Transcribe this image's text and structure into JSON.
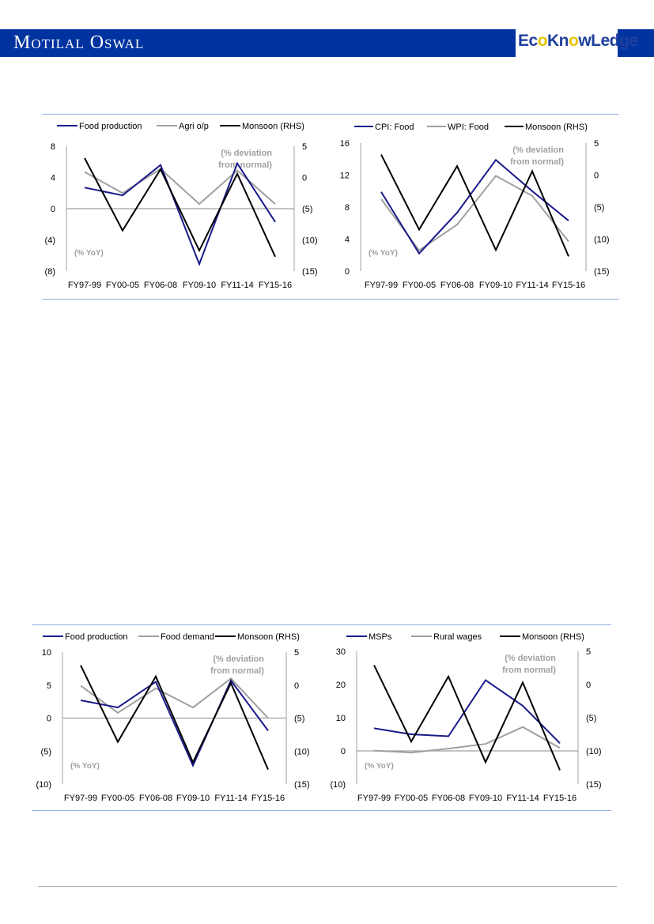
{
  "header": {
    "brand": "Motilal Oswal",
    "logo_text": "EcoKnowLedge",
    "color": "#0033a0"
  },
  "colors": {
    "navy": "#1a1a8c",
    "grey": "#a0a0a0",
    "black": "#000000",
    "annotation": "#a0a0a0",
    "frame": "#8eb0e6"
  },
  "chart_data": [
    {
      "type": "line",
      "categories": [
        "FY97-99",
        "FY00-05",
        "FY06-08",
        "FY09-10",
        "FY11-14",
        "FY15-16"
      ],
      "left_axis": {
        "range": [
          -8,
          8
        ],
        "ticks": [
          "8",
          "4",
          "0",
          "(4)",
          "(8)"
        ],
        "label": "(% YoY)"
      },
      "right_axis": {
        "range": [
          -15,
          5
        ],
        "ticks": [
          "5",
          "0",
          "(5)",
          "(10)",
          "(15)"
        ],
        "label": [
          "(% deviation",
          "from normal)"
        ]
      },
      "series": [
        {
          "name": "Food production",
          "axis": "left",
          "color": "#1a1a8c",
          "values": [
            2.7,
            1.7,
            5.6,
            -7.1,
            5.8,
            -1.7
          ]
        },
        {
          "name": "Agri o/p",
          "axis": "left",
          "color": "#a0a0a0",
          "values": [
            4.7,
            2.0,
            5.1,
            0.6,
            4.9,
            0.6
          ]
        },
        {
          "name": "Monsoon (RHS)",
          "axis": "right",
          "color": "#000000",
          "values": [
            3.1,
            -8.5,
            1.3,
            -11.7,
            0.6,
            -12.7
          ]
        }
      ]
    },
    {
      "type": "line",
      "categories": [
        "FY97-99",
        "FY00-05",
        "FY06-08",
        "FY09-10",
        "FY11-14",
        "FY15-16"
      ],
      "left_axis": {
        "range": [
          0,
          16
        ],
        "ticks": [
          "16",
          "12",
          "8",
          "4",
          "0"
        ],
        "label": "(% YoY)"
      },
      "right_axis": {
        "range": [
          -15,
          5
        ],
        "ticks": [
          "5",
          "0",
          "(5)",
          "(10)",
          "(15)"
        ],
        "label": [
          "(% deviation",
          "from normal)"
        ]
      },
      "series": [
        {
          "name": "CPI: Food",
          "axis": "left",
          "color": "#1a1a8c",
          "values": [
            9.9,
            2.2,
            7.3,
            13.9,
            10.0,
            6.3
          ]
        },
        {
          "name": "WPI: Food",
          "axis": "left",
          "color": "#a0a0a0",
          "values": [
            9.0,
            2.6,
            5.8,
            11.9,
            9.4,
            3.7
          ]
        },
        {
          "name": "Monsoon (RHS)",
          "axis": "right",
          "color": "#000000",
          "values": [
            3.2,
            -8.5,
            1.4,
            -11.7,
            0.6,
            -12.7
          ]
        }
      ]
    },
    {
      "type": "line",
      "categories": [
        "FY97-99",
        "FY00-05",
        "FY06-08",
        "FY09-10",
        "FY11-14",
        "FY15-16"
      ],
      "left_axis": {
        "range": [
          -10,
          10
        ],
        "ticks": [
          "10",
          "5",
          "0",
          "(5)",
          "(10)"
        ],
        "label": "(% YoY)"
      },
      "right_axis": {
        "range": [
          -15,
          5
        ],
        "ticks": [
          "5",
          "0",
          "(5)",
          "(10)",
          "(15)"
        ],
        "label": [
          "(% deviation",
          "from normal)"
        ]
      },
      "series": [
        {
          "name": "Food production",
          "axis": "left",
          "color": "#1a1a8c",
          "values": [
            2.7,
            1.6,
            5.5,
            -7.2,
            5.7,
            -1.9
          ]
        },
        {
          "name": "Food demand",
          "axis": "left",
          "color": "#a0a0a0",
          "values": [
            4.9,
            0.8,
            4.5,
            1.6,
            6.0,
            0.0
          ]
        },
        {
          "name": "Monsoon (RHS)",
          "axis": "right",
          "color": "#000000",
          "values": [
            3.0,
            -8.6,
            1.3,
            -11.7,
            0.3,
            -12.8
          ]
        }
      ]
    },
    {
      "type": "line",
      "categories": [
        "FY97-99",
        "FY00-05",
        "FY06-08",
        "FY09-10",
        "FY11-14",
        "FY15-16"
      ],
      "left_axis": {
        "range": [
          -10,
          30
        ],
        "ticks": [
          "30",
          "20",
          "10",
          "0",
          "(10)"
        ],
        "label": "(% YoY)"
      },
      "right_axis": {
        "range": [
          -15,
          5
        ],
        "ticks": [
          "5",
          "0",
          "(5)",
          "(10)",
          "(15)"
        ],
        "label": [
          "(% deviation",
          "from normal)"
        ]
      },
      "series": [
        {
          "name": "MSPs",
          "axis": "left",
          "color": "#1a1a8c",
          "values": [
            6.8,
            5.0,
            4.4,
            21.3,
            13.6,
            2.3
          ]
        },
        {
          "name": "Rural wages",
          "axis": "left",
          "color": "#a0a0a0",
          "values": [
            0.1,
            -0.5,
            0.7,
            2.1,
            7.2,
            0.9
          ]
        },
        {
          "name": "Monsoon (RHS)",
          "axis": "right",
          "color": "#000000",
          "values": [
            2.9,
            -8.6,
            1.2,
            -11.7,
            0.3,
            -12.9
          ]
        }
      ]
    }
  ]
}
